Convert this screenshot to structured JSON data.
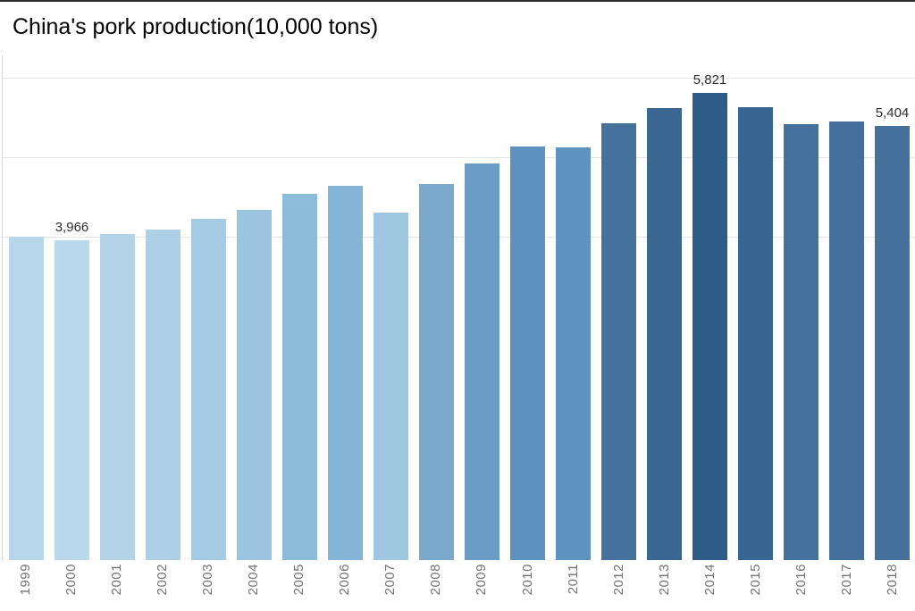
{
  "title": "China's pork production(10,000 tons)",
  "chart_data": {
    "type": "bar",
    "title": "China's pork production(10,000 tons)",
    "xlabel": "",
    "ylabel": "pork production (10,000 tons)",
    "ylim": [
      0,
      6350
    ],
    "grid": "horizontal, faint, unlabeled",
    "legend": "none",
    "y_gridlines": [
      4000,
      5000,
      6000
    ],
    "categories": [
      "1999",
      "2000",
      "2001",
      "2002",
      "2003",
      "2004",
      "2005",
      "2006",
      "2007",
      "2008",
      "2009",
      "2010",
      "2011",
      "2012",
      "2013",
      "2014",
      "2015",
      "2016",
      "2017",
      "2018"
    ],
    "values": [
      4010,
      3966,
      4048,
      4104,
      4238,
      4348,
      4552,
      4654,
      4316,
      4676,
      4935,
      5146,
      5135,
      5440,
      5630,
      5821,
      5642,
      5426,
      5460,
      5404
    ],
    "bar_colors": [
      "#b7d6eb",
      "#bad8ec",
      "#b4d3e9",
      "#aed0e7",
      "#a4cae4",
      "#9bc4e0",
      "#8dbbda",
      "#85b5d6",
      "#9fc7e2",
      "#7aa9cd",
      "#6b9cc7",
      "#5e91c0",
      "#6092c0",
      "#45729d",
      "#3a6792",
      "#2e5c88",
      "#396690",
      "#45729d",
      "#436f9a",
      "#44719c"
    ],
    "point_labels": {
      "2000": "3,966",
      "2014": "5,821",
      "2018": "5,404"
    },
    "color_encoding": "sequential blue ramp, darker = higher value",
    "annotations": [
      "3,966 above 2000 bar",
      "5,821 above 2014 peak bar",
      "5,404 above 2018 bar"
    ]
  }
}
